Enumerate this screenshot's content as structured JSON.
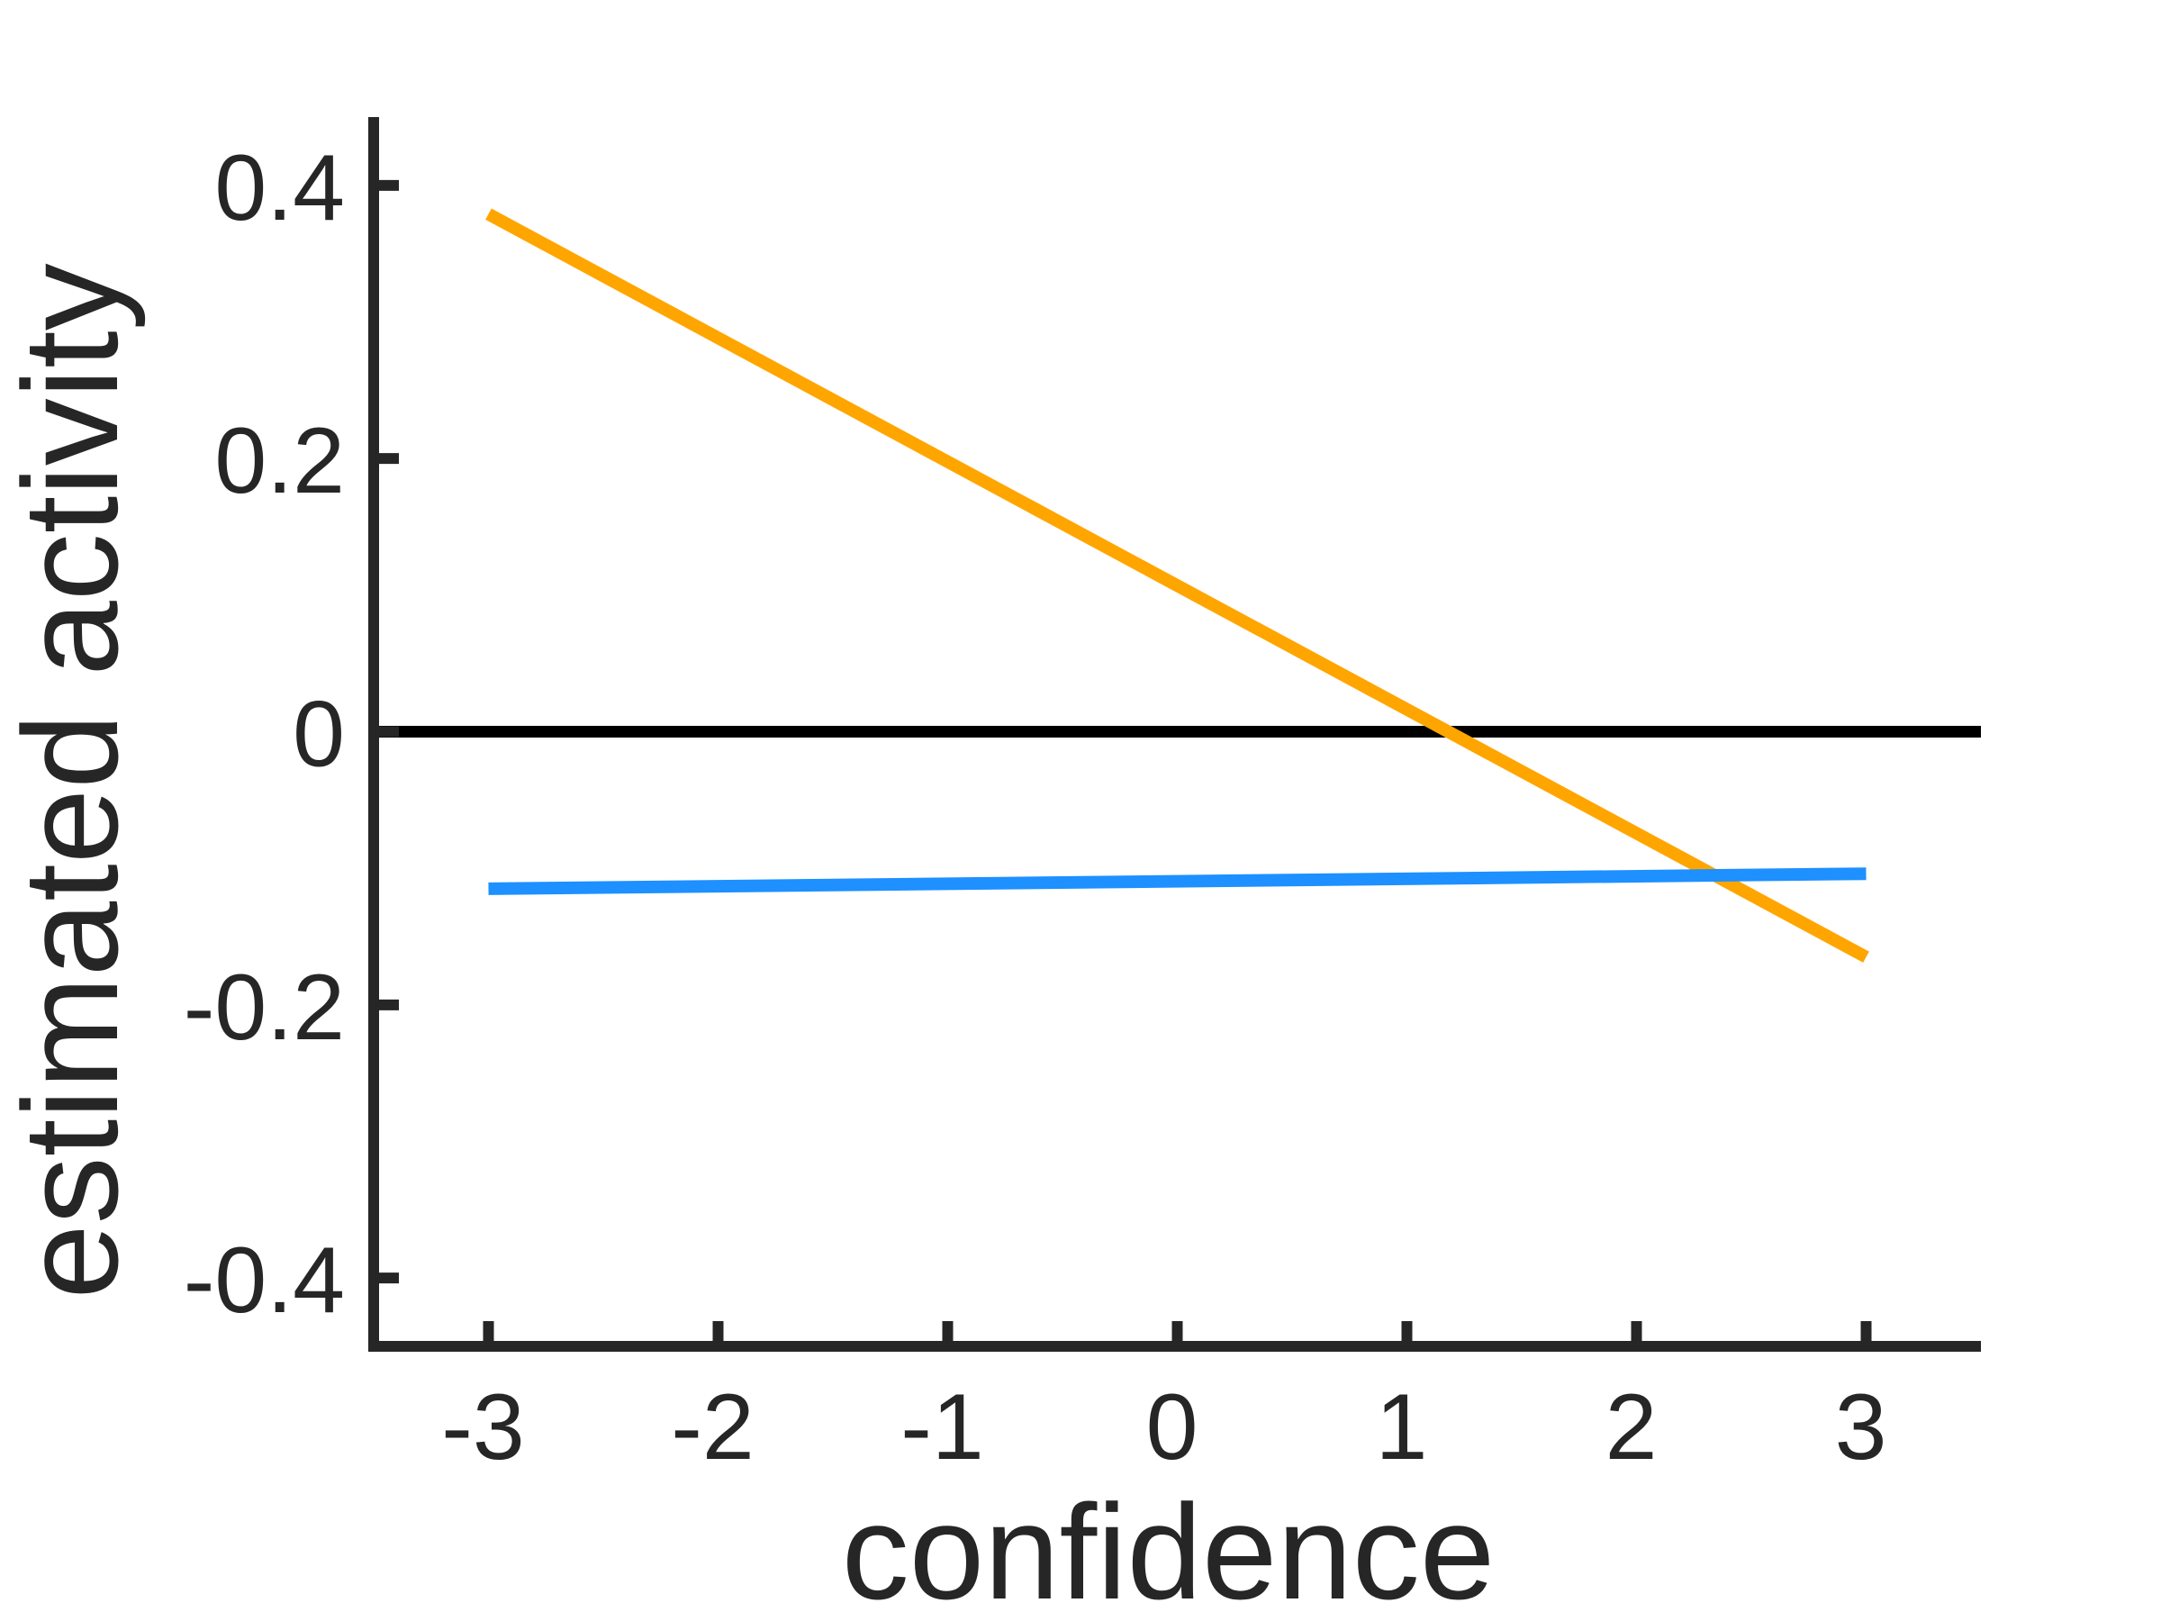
{
  "chart_data": {
    "type": "line",
    "title": "",
    "xlabel": "confidence",
    "ylabel": "estimated activity",
    "xlim": [
      -3.5,
      3.5
    ],
    "ylim": [
      -0.45,
      0.45
    ],
    "xticks": [
      -3,
      -2,
      -1,
      0,
      1,
      2,
      3
    ],
    "yticks": [
      -0.4,
      -0.2,
      0,
      0.2,
      0.4
    ],
    "xtick_labels": [
      "-3",
      "-2",
      "-1",
      "0",
      "1",
      "2",
      "3"
    ],
    "ytick_labels": [
      "-0.4",
      "-0.2",
      "0",
      "0.2",
      "0.4"
    ],
    "grid": false,
    "legend": "none",
    "series": [
      {
        "color": "#FFA500",
        "x": [
          -3,
          3
        ],
        "y": [
          0.379,
          -0.165
        ]
      },
      {
        "color": "#1E90FF",
        "x": [
          -3,
          3
        ],
        "y": [
          -0.115,
          -0.104
        ]
      }
    ],
    "reference_line": {
      "y": 0,
      "color": "#000000"
    },
    "axis_color": "#262626"
  }
}
